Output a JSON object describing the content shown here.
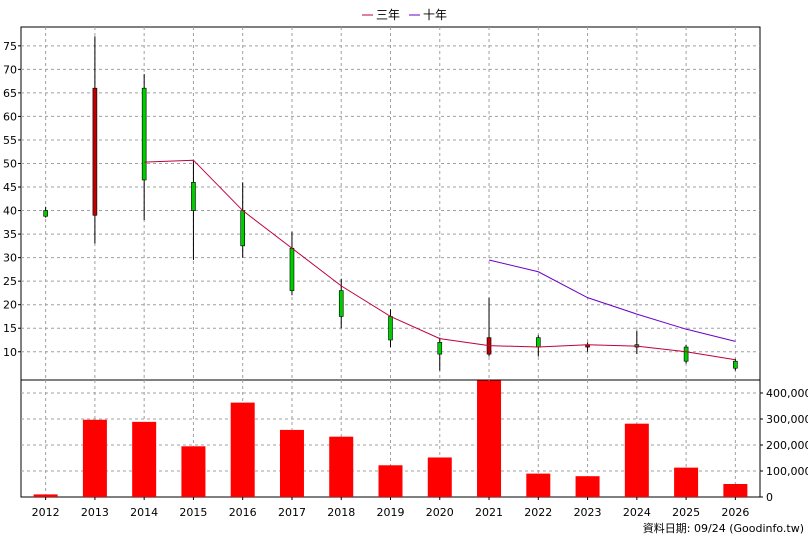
{
  "legend": [
    {
      "label": "三年",
      "color": "#c0003c"
    },
    {
      "label": "十年",
      "color": "#6a00c8"
    }
  ],
  "source_note": "資料日期: 09/24  (Goodinfo.tw)",
  "colors": {
    "up": "#c00000",
    "down": "#00cc00",
    "volume": "#ff0000",
    "grid": "#a0a0a0"
  },
  "chart_data": [
    {
      "type": "candlestick",
      "categories": [
        "2012",
        "2013",
        "2014",
        "2015",
        "2016",
        "2017",
        "2018",
        "2019",
        "2020",
        "2021",
        "2022",
        "2023",
        "2024",
        "2025",
        "2026"
      ],
      "candles": [
        {
          "open": 40.0,
          "high": 40.8,
          "low": 38.5,
          "close": 38.8
        },
        {
          "open": 39.0,
          "high": 77.0,
          "low": 33.0,
          "close": 66.0
        },
        {
          "open": 66.0,
          "high": 69.0,
          "low": 38.0,
          "close": 46.5
        },
        {
          "open": 46.0,
          "high": 50.5,
          "low": 29.5,
          "close": 40.0
        },
        {
          "open": 40.0,
          "high": 46.0,
          "low": 30.0,
          "close": 32.5
        },
        {
          "open": 32.0,
          "high": 35.5,
          "low": 22.0,
          "close": 23.0
        },
        {
          "open": 23.0,
          "high": 25.5,
          "low": 15.0,
          "close": 17.5
        },
        {
          "open": 17.5,
          "high": 19.0,
          "low": 11.0,
          "close": 12.5
        },
        {
          "open": 12.0,
          "high": 13.0,
          "low": 6.0,
          "close": 9.5
        },
        {
          "open": 9.5,
          "high": 21.5,
          "low": 9.0,
          "close": 13.0
        },
        {
          "open": 13.0,
          "high": 13.5,
          "low": 9.0,
          "close": 11.0
        },
        {
          "open": 11.0,
          "high": 12.0,
          "low": 10.0,
          "close": 11.5
        },
        {
          "open": 11.5,
          "high": 14.5,
          "low": 9.5,
          "close": 11.0
        },
        {
          "open": 11.0,
          "high": 11.5,
          "low": 7.5,
          "close": 8.0
        },
        {
          "open": 8.0,
          "high": 8.5,
          "low": 6.0,
          "close": 6.5
        }
      ],
      "series": [
        {
          "name": "三年",
          "values": [
            null,
            null,
            50.3,
            50.7,
            40.0,
            32.0,
            24.0,
            17.5,
            12.8,
            11.3,
            11.0,
            11.5,
            11.2,
            10.0,
            8.3
          ]
        },
        {
          "name": "十年",
          "values": [
            null,
            null,
            null,
            null,
            null,
            null,
            null,
            null,
            null,
            29.5,
            27.0,
            21.5,
            18.0,
            14.8,
            12.2
          ]
        }
      ],
      "yticks": [
        10,
        15,
        20,
        25,
        30,
        35,
        40,
        45,
        50,
        55,
        60,
        65,
        70,
        75
      ],
      "ylim": [
        4,
        79
      ]
    },
    {
      "type": "bar",
      "categories": [
        "2012",
        "2013",
        "2014",
        "2015",
        "2016",
        "2017",
        "2018",
        "2019",
        "2020",
        "2021",
        "2022",
        "2023",
        "2024",
        "2025",
        "2026"
      ],
      "values": [
        10000,
        297000,
        289000,
        195000,
        363000,
        258000,
        232000,
        122000,
        152000,
        448000,
        90000,
        80000,
        282000,
        113000,
        50000
      ],
      "yticks": [
        0,
        100000,
        200000,
        300000,
        400000
      ],
      "ytick_labels": [
        "0",
        "100,000",
        "200,000",
        "300,000",
        "400,000"
      ],
      "ylim": [
        0,
        450000
      ]
    }
  ]
}
